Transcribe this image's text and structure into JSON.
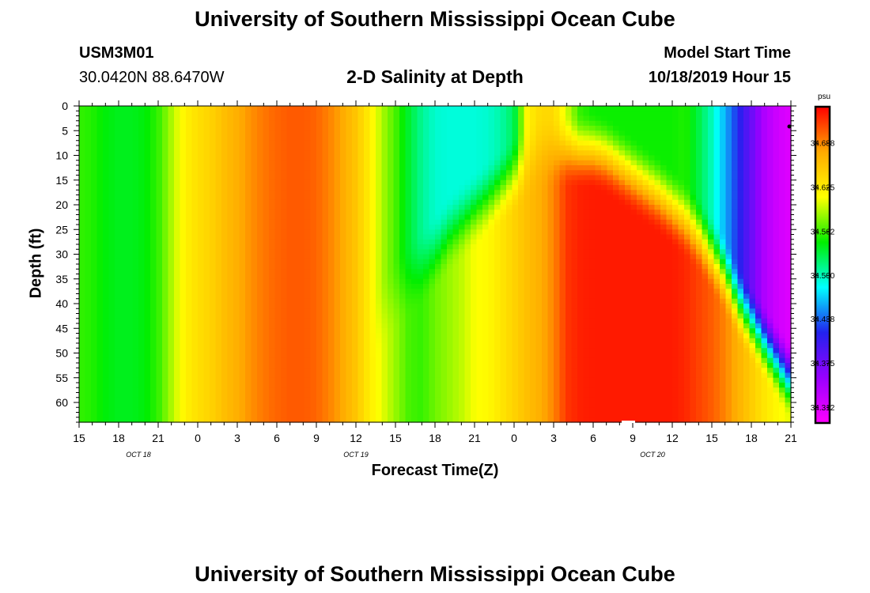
{
  "header": {
    "title_top": "University of Southern Mississippi Ocean Cube",
    "station_id": "USM3M01",
    "station_coords": "30.0420N 88.6470W",
    "plot_title": "2-D Salinity at Depth",
    "model_start_label": "Model Start Time",
    "model_start_value": "10/18/2019 Hour 15",
    "title_bottom": "University of Southern Mississippi Ocean Cube"
  },
  "colors": {
    "scale": [
      "#ff00ff",
      "#9900ff",
      "#2222ee",
      "#00ffff",
      "#00ee00",
      "#ffff00",
      "#ffaa00",
      "#ff0000"
    ]
  },
  "chart_data": {
    "type": "heatmap",
    "xlabel": "Forecast Time(Z)",
    "ylabel": "Depth (ft)",
    "colorbar_unit": "psu",
    "colorbar_ticks": [
      34.688,
      34.625,
      34.562,
      34.5,
      34.438,
      34.375,
      34.312
    ],
    "colorbar_range": [
      34.29,
      34.74
    ],
    "x_hours_range": [
      0,
      54
    ],
    "y_range": [
      0,
      64
    ],
    "x_ticks": [
      "15",
      "18",
      "21",
      "0",
      "3",
      "6",
      "9",
      "12",
      "15",
      "18",
      "21",
      "0",
      "3",
      "6",
      "9",
      "12",
      "15",
      "18",
      "21"
    ],
    "x_day_labels": [
      {
        "label": "OCT 18",
        "hour": 4.5
      },
      {
        "label": "OCT 19",
        "hour": 21
      },
      {
        "label": "OCT 20",
        "hour": 43.5
      }
    ],
    "y_ticks": [
      "0",
      "5",
      "10",
      "15",
      "20",
      "25",
      "30",
      "35",
      "40",
      "45",
      "50",
      "55",
      "60"
    ],
    "y_tick_values": [
      0,
      5,
      10,
      15,
      20,
      25,
      30,
      35,
      40,
      45,
      50,
      55,
      60
    ],
    "surface_hours": [
      0,
      1,
      2,
      3,
      4,
      5,
      6,
      7,
      8,
      9,
      10,
      11,
      12,
      13,
      14,
      15,
      16,
      17,
      18,
      19,
      20,
      21,
      22,
      23,
      24,
      25,
      26,
      27,
      28,
      29,
      30,
      31,
      32,
      33,
      34,
      35,
      36,
      37,
      38,
      39,
      40,
      41,
      42,
      43,
      44,
      45,
      46,
      47,
      48,
      49,
      50,
      51,
      52,
      53,
      54
    ],
    "surface_values": [
      34.56,
      34.555,
      34.545,
      34.54,
      34.54,
      34.545,
      34.56,
      34.59,
      34.62,
      34.635,
      34.645,
      34.66,
      34.672,
      34.685,
      34.695,
      34.702,
      34.706,
      34.706,
      34.702,
      34.69,
      34.675,
      34.655,
      34.625,
      34.59,
      34.565,
      34.535,
      34.51,
      34.495,
      34.492,
      34.492,
      34.492,
      34.495,
      34.505,
      34.525,
      34.62,
      34.64,
      34.64,
      34.6,
      34.56,
      34.55,
      34.55,
      34.55,
      34.55,
      34.55,
      34.55,
      34.55,
      34.555,
      34.53,
      34.5,
      34.46,
      34.42,
      34.38,
      34.34,
      34.32,
      34.31
    ],
    "bottom_hours": [
      0,
      1,
      2,
      3,
      4,
      5,
      6,
      7,
      8,
      9,
      10,
      11,
      12,
      13,
      14,
      15,
      16,
      17,
      18,
      19,
      20,
      21,
      22,
      23,
      24,
      25,
      26,
      27,
      28,
      29,
      30,
      31,
      32,
      33,
      34,
      35,
      36,
      37,
      38,
      39,
      40,
      41,
      42,
      43,
      44,
      45,
      46,
      47,
      48,
      49,
      50,
      51,
      52,
      53,
      54
    ],
    "bottom_values": [
      34.56,
      34.555,
      34.545,
      34.54,
      34.54,
      34.545,
      34.56,
      34.59,
      34.62,
      34.635,
      34.645,
      34.66,
      34.672,
      34.685,
      34.695,
      34.702,
      34.706,
      34.706,
      34.702,
      34.69,
      34.675,
      34.655,
      34.625,
      34.605,
      34.585,
      34.565,
      34.56,
      34.575,
      34.585,
      34.595,
      34.61,
      34.615,
      34.63,
      34.645,
      34.66,
      34.672,
      34.69,
      34.72,
      34.728,
      34.73,
      34.73,
      34.73,
      34.73,
      34.73,
      34.73,
      34.73,
      34.725,
      34.715,
      34.705,
      34.69,
      34.67,
      34.65,
      34.63,
      34.615,
      34.605
    ],
    "blend_depth_hours": [
      0,
      16,
      17,
      21,
      24,
      27,
      28,
      33,
      35,
      39,
      40,
      42,
      44,
      46,
      47,
      49,
      50,
      52,
      54
    ],
    "blend_depth_values": [
      64,
      64,
      64,
      50,
      38,
      30,
      26,
      14,
      9,
      9,
      10,
      14,
      18,
      23,
      26,
      34,
      40,
      48,
      56
    ]
  }
}
